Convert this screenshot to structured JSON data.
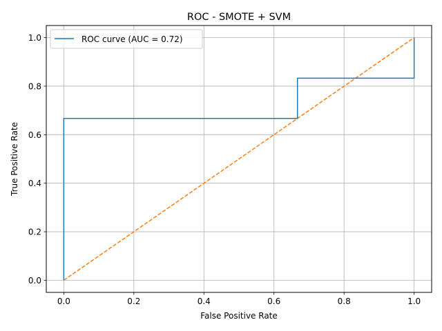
{
  "chart_data": {
    "type": "line",
    "title": "ROC - SMOTE + SVM",
    "xlabel": "False Positive Rate",
    "ylabel": "True Positive Rate",
    "xlim": [
      -0.05,
      1.05
    ],
    "ylim": [
      -0.05,
      1.05
    ],
    "xticks": [
      0.0,
      0.2,
      0.4,
      0.6,
      0.8,
      1.0
    ],
    "yticks": [
      0.0,
      0.2,
      0.4,
      0.6,
      0.8,
      1.0
    ],
    "xtick_labels": [
      "0.0",
      "0.2",
      "0.4",
      "0.6",
      "0.8",
      "1.0"
    ],
    "ytick_labels": [
      "0.0",
      "0.2",
      "0.4",
      "0.6",
      "0.8",
      "1.0"
    ],
    "grid": true,
    "legend_position": "top-left",
    "series": [
      {
        "name": "ROC curve (AUC = 0.72)",
        "style": "solid",
        "color": "#1f77b4",
        "x": [
          0.0,
          0.0,
          0.667,
          0.667,
          1.0,
          1.0
        ],
        "y": [
          0.0,
          0.667,
          0.667,
          0.833,
          0.833,
          1.0
        ],
        "in_legend": true
      },
      {
        "style": "dashed",
        "color": "#ff7f0e",
        "x": [
          0.0,
          1.0
        ],
        "y": [
          0.0,
          1.0
        ],
        "in_legend": false
      }
    ]
  }
}
